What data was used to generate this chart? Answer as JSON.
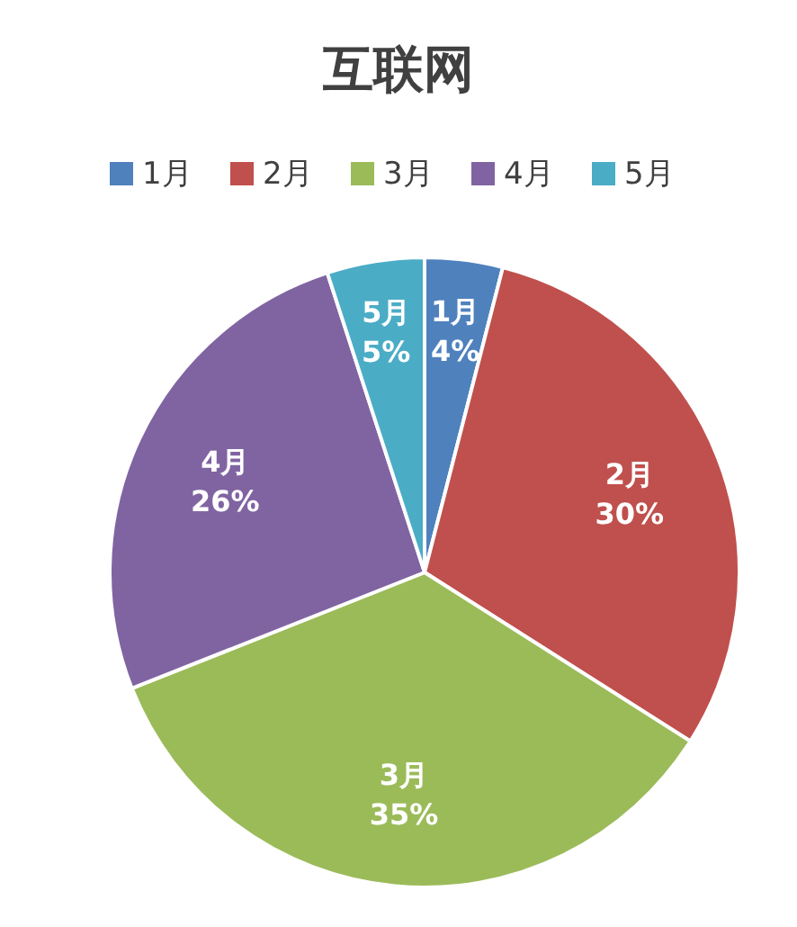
{
  "chart_data": {
    "type": "pie",
    "title": "互联网",
    "categories": [
      "1月",
      "2月",
      "3月",
      "4月",
      "5月"
    ],
    "values": [
      4,
      30,
      35,
      26,
      5
    ],
    "colors": [
      "#4f81bd",
      "#c0504d",
      "#9bbb59",
      "#8064a2",
      "#4bacc6"
    ],
    "value_labels": [
      "4%",
      "30%",
      "35%",
      "26%",
      "5%"
    ],
    "legend": "top"
  }
}
